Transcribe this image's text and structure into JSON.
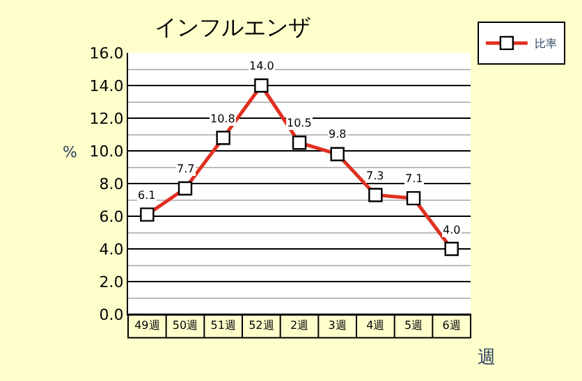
{
  "chart_data": {
    "type": "line",
    "title": "インフルエンザ",
    "xlabel": "週",
    "ylabel": "%",
    "categories": [
      "49週",
      "50週",
      "51週",
      "52週",
      "2週",
      "3週",
      "4週",
      "5週",
      "6週"
    ],
    "series": [
      {
        "name": "比率",
        "color": "#e03020",
        "values": [
          6.1,
          7.7,
          10.8,
          14.0,
          10.5,
          9.8,
          7.3,
          7.1,
          4.0
        ],
        "value_labels": [
          "6.1",
          "7.7",
          "10.8",
          "14.0",
          "10.5",
          "9.8",
          "7.3",
          "7.1",
          "4.0"
        ]
      }
    ],
    "ylim": [
      0,
      16
    ],
    "yticks": [
      {
        "value": 0,
        "label": "0.0"
      },
      {
        "value": 2,
        "label": "2.0"
      },
      {
        "value": 4,
        "label": "4.0"
      },
      {
        "value": 6,
        "label": "6.0"
      },
      {
        "value": 8,
        "label": "8.0"
      },
      {
        "value": 10,
        "label": "10.0"
      },
      {
        "value": 12,
        "label": "12.0"
      },
      {
        "value": 14,
        "label": "14.0"
      },
      {
        "value": 16,
        "label": "16.0"
      }
    ],
    "grid": "y",
    "legend": "top right",
    "marker": "square",
    "line_style": "solid"
  }
}
